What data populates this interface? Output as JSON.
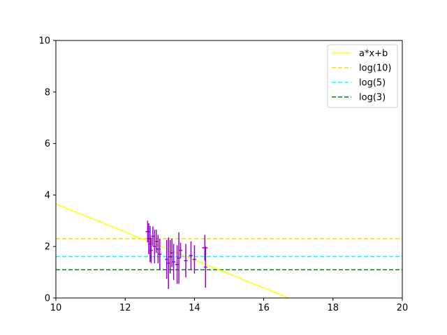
{
  "chart_data": {
    "type": "scatter",
    "title": "",
    "xlabel": "",
    "ylabel": "",
    "xlim": [
      10,
      20
    ],
    "ylim": [
      0,
      10
    ],
    "xticks": [
      "10",
      "12",
      "14",
      "16",
      "18",
      "20"
    ],
    "yticks": [
      "0",
      "2",
      "4",
      "6",
      "8",
      "10"
    ],
    "grid": false,
    "legend_position": "top-right",
    "fit_line": {
      "name": "a*x+b",
      "color": "#ffff00",
      "style": "solid",
      "x": [
        10,
        16.72
      ],
      "y": [
        3.65,
        0.0
      ]
    },
    "hlines": [
      {
        "name": "log(10)",
        "value": 2.302585,
        "color": "#ffd700",
        "style": "dashed"
      },
      {
        "name": "log(5)",
        "value": 1.609438,
        "color": "#00ffff",
        "style": "dashed"
      },
      {
        "name": "log(3)",
        "value": 1.098612,
        "color": "#008000",
        "style": "dashed"
      }
    ],
    "series": [
      {
        "marker_color": "#9400d3",
        "points": [
          {
            "x": 12.65,
            "y": 2.58,
            "yerr": 0.42,
            "xerr": 0.06
          },
          {
            "x": 12.68,
            "y": 2.3,
            "yerr": 0.6,
            "xerr": 0.05
          },
          {
            "x": 12.72,
            "y": 2.1,
            "yerr": 0.7,
            "xerr": 0.05
          },
          {
            "x": 12.75,
            "y": 1.85,
            "yerr": 0.5,
            "xerr": 0.05
          },
          {
            "x": 12.8,
            "y": 2.4,
            "yerr": 0.38,
            "xerr": 0.05
          },
          {
            "x": 12.85,
            "y": 2.0,
            "yerr": 0.65,
            "xerr": 0.05
          },
          {
            "x": 12.9,
            "y": 2.2,
            "yerr": 0.45,
            "xerr": 0.05
          },
          {
            "x": 12.95,
            "y": 1.9,
            "yerr": 0.55,
            "xerr": 0.05
          },
          {
            "x": 13.0,
            "y": 1.7,
            "yerr": 0.6,
            "xerr": 0.05
          },
          {
            "x": 13.2,
            "y": 1.5,
            "yerr": 0.75,
            "xerr": 0.05
          },
          {
            "x": 13.25,
            "y": 1.35,
            "yerr": 1.0,
            "xerr": 0.05
          },
          {
            "x": 13.3,
            "y": 1.6,
            "yerr": 0.65,
            "xerr": 0.05
          },
          {
            "x": 13.35,
            "y": 1.75,
            "yerr": 0.55,
            "xerr": 0.05
          },
          {
            "x": 13.4,
            "y": 1.4,
            "yerr": 0.7,
            "xerr": 0.05
          },
          {
            "x": 13.5,
            "y": 1.3,
            "yerr": 0.75,
            "xerr": 0.05
          },
          {
            "x": 13.55,
            "y": 1.55,
            "yerr": 1.0,
            "xerr": 0.05
          },
          {
            "x": 13.6,
            "y": 1.85,
            "yerr": 0.3,
            "xerr": 0.05
          },
          {
            "x": 13.75,
            "y": 1.45,
            "yerr": 0.65,
            "xerr": 0.05
          },
          {
            "x": 13.9,
            "y": 1.65,
            "yerr": 0.55,
            "xerr": 0.05
          },
          {
            "x": 14.0,
            "y": 1.5,
            "yerr": 0.55,
            "xerr": 0.05
          },
          {
            "x": 14.3,
            "y": 1.95,
            "yerr": 0.5,
            "xerr": 0.08
          },
          {
            "x": 14.32,
            "y": 1.2,
            "yerr": 0.8,
            "xerr": 0.05
          }
        ]
      }
    ]
  }
}
